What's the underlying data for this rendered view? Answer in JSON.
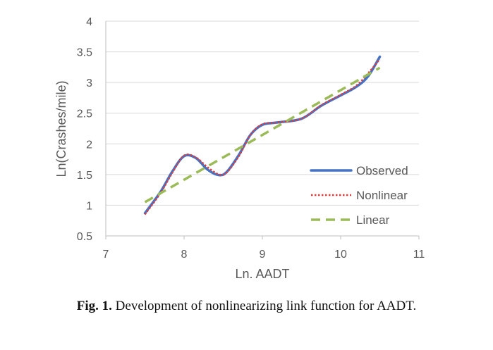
{
  "chart_data": {
    "type": "line",
    "xlabel": "Ln. AADT",
    "ylabel": "Ln(Crashes/mile)",
    "xlim": [
      7,
      11
    ],
    "ylim": [
      0.5,
      4
    ],
    "x_ticks": [
      "7",
      "8",
      "9",
      "10",
      "11"
    ],
    "y_ticks": [
      "0.5",
      "1",
      "1.5",
      "2",
      "2.5",
      "3",
      "3.5",
      "4"
    ],
    "grid": "horizontal",
    "legend_position": "right",
    "series": [
      {
        "name": "Observed",
        "color": "#4472C4",
        "style": "solid",
        "x": [
          7.5,
          7.7,
          7.85,
          8.0,
          8.15,
          8.3,
          8.45,
          8.55,
          8.7,
          8.85,
          9.0,
          9.2,
          9.5,
          9.75,
          10.0,
          10.2,
          10.35,
          10.5
        ],
        "y": [
          0.87,
          1.22,
          1.55,
          1.8,
          1.77,
          1.58,
          1.49,
          1.55,
          1.82,
          2.15,
          2.31,
          2.35,
          2.41,
          2.62,
          2.79,
          2.93,
          3.1,
          3.42
        ]
      },
      {
        "name": "Nonlinear",
        "color": "#E03C3C",
        "style": "dotted",
        "x": [
          7.5,
          7.7,
          7.85,
          8.0,
          8.15,
          8.3,
          8.45,
          8.55,
          8.7,
          8.85,
          9.0,
          9.2,
          9.5,
          9.75,
          10.0,
          10.2,
          10.35,
          10.5
        ],
        "y": [
          0.85,
          1.2,
          1.53,
          1.81,
          1.78,
          1.62,
          1.5,
          1.54,
          1.8,
          2.15,
          2.32,
          2.35,
          2.41,
          2.63,
          2.8,
          2.95,
          3.15,
          3.38
        ]
      },
      {
        "name": "Linear",
        "color": "#9BBB59",
        "style": "dashed",
        "x": [
          7.5,
          10.5
        ],
        "y": [
          1.05,
          3.24
        ]
      }
    ]
  },
  "caption": {
    "label": "Fig. 1.",
    "text": "Development of nonlinearizing link function for AADT."
  }
}
